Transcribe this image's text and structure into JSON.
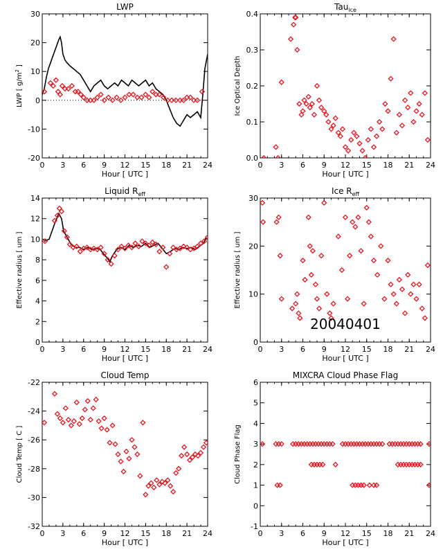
{
  "date_stamp": "20040401",
  "colors": {
    "marker": "#e8141e",
    "line": "#000000",
    "axis": "#000000",
    "background": "#ffffff"
  },
  "chart_data": [
    {
      "id": "lwp",
      "type": "line",
      "title": "LWP",
      "title_sub": "",
      "ylabel": "LWP [ g/m",
      "ylabel_sup": "2",
      "ylabel_tail": " ]",
      "xlabel": "Hour [ UTC ]",
      "xlim": [
        0,
        24
      ],
      "ylim": [
        -20,
        30
      ],
      "xticks": [
        "0",
        "3",
        "6",
        "9",
        "12",
        "15",
        "18",
        "21",
        "24"
      ],
      "yticks": [
        "-20",
        "-10",
        "0",
        "10",
        "20",
        "30"
      ],
      "zero_line": true,
      "series": [
        {
          "style": "line",
          "x": [
            0,
            0.3,
            0.6,
            0.9,
            1.2,
            1.5,
            1.8,
            2.1,
            2.4,
            2.6,
            2.8,
            3.0,
            3.3,
            3.6,
            4.0,
            4.5,
            5.0,
            5.5,
            6.0,
            6.5,
            7.0,
            7.5,
            8.0,
            8.5,
            9.0,
            9.5,
            10.0,
            10.5,
            11.0,
            11.5,
            12.0,
            12.5,
            13.0,
            13.5,
            14.0,
            14.5,
            15.0,
            15.5,
            16.0,
            16.5,
            17.0,
            17.5,
            18.0,
            18.5,
            19.0,
            19.5,
            20.0,
            20.5,
            21.0,
            21.5,
            22.0,
            22.5,
            23.0,
            23.3,
            23.6,
            24.0
          ],
          "y": [
            2,
            4,
            8,
            11,
            13,
            15,
            17,
            19,
            21,
            22,
            20,
            16,
            14,
            13,
            12,
            11,
            10,
            9,
            7,
            5,
            3,
            5,
            6,
            7,
            5,
            4,
            5,
            6,
            5,
            7,
            6,
            5,
            7,
            6,
            5,
            6,
            7,
            5,
            6,
            4,
            3,
            2,
            0,
            -3,
            -6,
            -8,
            -9,
            -7,
            -5,
            -6,
            -5,
            -4,
            -6,
            2,
            11,
            16
          ]
        },
        {
          "style": "marker",
          "x": [
            0.3,
            1.2,
            1.6,
            2.0,
            2.3,
            2.6,
            2.9,
            3.3,
            3.8,
            4.3,
            4.8,
            5.2,
            5.6,
            6.0,
            6.5,
            7.0,
            7.5,
            8.0,
            8.5,
            9.0,
            9.6,
            10.2,
            10.8,
            11.4,
            12.0,
            12.6,
            13.2,
            13.8,
            14.4,
            15.0,
            15.5,
            16.0,
            16.5,
            17.0,
            17.6,
            18.2,
            18.8,
            19.4,
            20.0,
            20.5,
            21.0,
            21.5,
            22.0,
            22.5,
            23.2
          ],
          "y": [
            3,
            6,
            5,
            7,
            3,
            2,
            5,
            4,
            4,
            5,
            3,
            3,
            2,
            1,
            0,
            0,
            0,
            1,
            2,
            0,
            1,
            0,
            1,
            0,
            1,
            2,
            2,
            1,
            1,
            2,
            1,
            3,
            2,
            2,
            1,
            0,
            0,
            0,
            0,
            0,
            1,
            1,
            0,
            0,
            3
          ]
        }
      ]
    },
    {
      "id": "tau",
      "type": "scatter",
      "title": "Tau",
      "title_sub": "ice",
      "ylabel": "Ice Optical Depth",
      "ylabel_sup": "",
      "ylabel_tail": "",
      "xlabel": "Hour [ UTC ]",
      "xlim": [
        0,
        24
      ],
      "ylim": [
        0,
        0.4
      ],
      "xticks": [
        "0",
        "3",
        "6",
        "9",
        "12",
        "15",
        "18",
        "21",
        "24"
      ],
      "yticks": [
        "0.0",
        "0.1",
        "0.2",
        "0.3",
        "0.4"
      ],
      "zero_line": false,
      "series": [
        {
          "style": "marker",
          "x": [
            0.5,
            2.2,
            2.5,
            3.0,
            4.3,
            4.7,
            4.9,
            5.0,
            5.2,
            5.5,
            5.8,
            6.0,
            6.2,
            6.5,
            6.8,
            7.0,
            7.3,
            7.6,
            8.0,
            8.3,
            8.6,
            9.0,
            9.3,
            9.6,
            10.0,
            10.3,
            10.6,
            11.0,
            11.3,
            11.6,
            12.0,
            12.4,
            12.8,
            13.2,
            13.6,
            14.0,
            14.4,
            14.8,
            15.2,
            15.6,
            16.0,
            16.4,
            16.8,
            17.2,
            17.6,
            18.0,
            18.4,
            18.8,
            19.2,
            19.6,
            20.0,
            20.4,
            20.8,
            21.2,
            21.6,
            22.0,
            22.4,
            22.8,
            23.2,
            23.6
          ],
          "y": [
            0,
            0.03,
            0,
            0.21,
            0.33,
            0.37,
            0.39,
            0.39,
            0.3,
            0.15,
            0.12,
            0.13,
            0.16,
            0.15,
            0.17,
            0.14,
            0.15,
            0.12,
            0.2,
            0.16,
            0.14,
            0.13,
            0.12,
            0.1,
            0.08,
            0.09,
            0.11,
            0.07,
            0.06,
            0.08,
            0.03,
            0.02,
            0.05,
            0.07,
            0.06,
            0.04,
            0.02,
            0.0,
            0.05,
            0.08,
            0.03,
            0.06,
            0.1,
            0.08,
            0.15,
            0.13,
            0.22,
            0.33,
            0.07,
            0.12,
            0.09,
            0.16,
            0.14,
            0.18,
            0.1,
            0.13,
            0.15,
            0.12,
            0.18,
            0.05
          ]
        }
      ]
    },
    {
      "id": "liquid_reff",
      "type": "scatter",
      "title": "Liquid R",
      "title_sub": "eff",
      "ylabel": "Effective radius [ um ]",
      "ylabel_sup": "",
      "ylabel_tail": "",
      "xlabel": "Hour [ UTC ]",
      "xlim": [
        0,
        24
      ],
      "ylim": [
        0,
        14
      ],
      "xticks": [
        "0",
        "3",
        "6",
        "9",
        "12",
        "15",
        "18",
        "21",
        "24"
      ],
      "yticks": [
        "0",
        "2",
        "4",
        "6",
        "8",
        "10",
        "12",
        "14"
      ],
      "zero_line": false,
      "series": [
        {
          "style": "line",
          "x": [
            0.3,
            1.0,
            1.8,
            2.4,
            2.8,
            3.1,
            3.6,
            4.2,
            4.8,
            5.4,
            6.0,
            6.6,
            7.2,
            7.8,
            8.4,
            9.0,
            9.4,
            9.8,
            10.2,
            10.8,
            11.4,
            12.0,
            12.6,
            13.2,
            13.8,
            14.4,
            15.0,
            15.6,
            16.2,
            16.8,
            17.4,
            18.0,
            18.6,
            19.2,
            19.8,
            20.4,
            21.0,
            21.6,
            22.2,
            22.8,
            23.4,
            23.8
          ],
          "y": [
            9.8,
            10.0,
            11.5,
            12.5,
            12.0,
            10.8,
            10.2,
            9.5,
            9.2,
            9.2,
            9.0,
            9.2,
            9.0,
            9.1,
            9.0,
            8.5,
            8.2,
            7.8,
            8.4,
            9.0,
            9.2,
            9.0,
            9.4,
            9.2,
            9.4,
            9.3,
            9.6,
            9.2,
            9.4,
            9.6,
            9.1,
            8.6,
            8.8,
            9.1,
            9.0,
            9.2,
            9.1,
            9.2,
            9.0,
            9.3,
            9.6,
            10.2
          ]
        },
        {
          "style": "marker",
          "x": [
            0.4,
            1.8,
            2.2,
            2.5,
            2.8,
            3.2,
            3.6,
            4.0,
            4.5,
            5.0,
            5.5,
            6.0,
            6.5,
            7.0,
            7.5,
            8.0,
            8.5,
            9.0,
            9.5,
            10.0,
            10.5,
            11.0,
            11.5,
            12.0,
            12.5,
            13.0,
            13.5,
            14.0,
            14.5,
            15.0,
            15.5,
            16.0,
            16.5,
            17.0,
            17.5,
            18.0,
            18.5,
            19.0,
            19.5,
            20.0,
            20.5,
            21.0,
            21.5,
            22.0,
            22.5,
            23.0,
            23.5,
            24.0
          ],
          "y": [
            9.8,
            11.8,
            12.3,
            13.0,
            12.7,
            10.8,
            10.2,
            9.5,
            9.2,
            9.3,
            8.8,
            9.1,
            9.2,
            9.0,
            9.1,
            9.0,
            9.2,
            8.6,
            8.0,
            7.6,
            8.4,
            9.0,
            9.3,
            9.1,
            9.4,
            9.2,
            9.6,
            9.3,
            9.8,
            9.6,
            9.4,
            9.7,
            9.5,
            8.8,
            9.2,
            7.3,
            8.6,
            9.2,
            9.0,
            9.1,
            9.3,
            9.2,
            9.0,
            9.1,
            9.3,
            9.6,
            9.8,
            10.2
          ]
        }
      ]
    },
    {
      "id": "ice_reff",
      "type": "scatter",
      "title": "Ice R",
      "title_sub": "eff",
      "ylabel": "Effective radius [ um ]",
      "ylabel_sup": "",
      "ylabel_tail": "",
      "xlabel": "Hour [ UTC ]",
      "xlim": [
        0,
        24
      ],
      "ylim": [
        0,
        30
      ],
      "xticks": [
        "0",
        "3",
        "6",
        "9",
        "12",
        "15",
        "18",
        "21",
        "24"
      ],
      "yticks": [
        "0",
        "10",
        "20",
        "30"
      ],
      "zero_line": false,
      "series": [
        {
          "style": "marker",
          "x": [
            0.3,
            0.4,
            2.3,
            2.6,
            2.8,
            3.0,
            4.5,
            5.0,
            5.2,
            5.4,
            5.6,
            6.0,
            6.3,
            6.8,
            7.0,
            7.2,
            7.4,
            7.8,
            8.0,
            8.3,
            8.6,
            9.0,
            9.4,
            9.8,
            10.0,
            10.3,
            11.0,
            11.5,
            12.0,
            12.3,
            12.6,
            13.0,
            13.4,
            13.8,
            14.2,
            14.6,
            15.0,
            15.3,
            15.6,
            16.0,
            16.5,
            17.0,
            17.5,
            18.0,
            18.4,
            18.8,
            19.2,
            19.6,
            20.0,
            20.4,
            20.8,
            21.2,
            21.6,
            22.0,
            22.4,
            22.8,
            23.2,
            23.6
          ],
          "y": [
            29,
            25,
            25,
            26,
            18,
            9,
            7,
            8,
            10,
            6,
            5,
            17,
            13,
            26,
            20,
            14,
            19,
            12,
            9,
            7,
            18,
            29,
            10,
            6,
            5,
            8,
            22,
            15,
            26,
            9,
            18,
            25,
            24,
            26,
            19,
            8,
            28,
            25,
            22,
            17,
            14,
            20,
            9,
            17,
            12,
            10,
            8,
            13,
            11,
            6,
            14,
            10,
            12,
            9,
            12,
            7,
            5,
            16
          ]
        }
      ]
    },
    {
      "id": "cloud_temp",
      "type": "scatter",
      "title": "Cloud Temp",
      "title_sub": "",
      "ylabel": "Cloud Temp [ C ]",
      "ylabel_sup": "",
      "ylabel_tail": "",
      "xlabel": "Hour [ UTC ]",
      "xlim": [
        0,
        24
      ],
      "ylim": [
        -32,
        -22
      ],
      "xticks": [
        "0",
        "3",
        "6",
        "9",
        "12",
        "15",
        "18",
        "21",
        "24"
      ],
      "yticks": [
        "-32",
        "-30",
        "-28",
        "-26",
        "-24",
        "-22"
      ],
      "zero_line": false,
      "series": [
        {
          "style": "marker",
          "x": [
            0.3,
            1.8,
            2.2,
            2.6,
            3.0,
            3.4,
            3.8,
            4.2,
            4.6,
            5.0,
            5.4,
            5.8,
            6.2,
            6.6,
            7.0,
            7.4,
            7.8,
            8.2,
            8.6,
            9.0,
            9.4,
            9.8,
            10.2,
            10.6,
            11.0,
            11.4,
            11.8,
            12.2,
            12.6,
            13.0,
            13.4,
            13.8,
            14.2,
            14.6,
            15.0,
            15.4,
            15.8,
            16.2,
            16.6,
            17.0,
            17.4,
            17.8,
            18.2,
            18.6,
            19.0,
            19.4,
            19.8,
            20.2,
            20.6,
            21.0,
            21.4,
            21.8,
            22.2,
            22.6,
            23.0,
            23.4,
            23.8
          ],
          "y": [
            -24.8,
            -22.8,
            -24.2,
            -24.5,
            -24.8,
            -23.8,
            -24.6,
            -25.0,
            -24.7,
            -23.4,
            -24.9,
            -24.5,
            -23.9,
            -23.3,
            -24.6,
            -23.8,
            -23.2,
            -24.7,
            -25.2,
            -24.5,
            -25.3,
            -26.2,
            -25.0,
            -26.3,
            -27.0,
            -27.5,
            -28.2,
            -26.8,
            -27.3,
            -26.0,
            -26.5,
            -27.0,
            -28.5,
            -24.8,
            -29.8,
            -29.2,
            -29.0,
            -29.3,
            -28.8,
            -29.1,
            -28.9,
            -29.0,
            -28.8,
            -29.2,
            -29.6,
            -28.3,
            -28.0,
            -27.1,
            -26.5,
            -27.0,
            -27.4,
            -27.2,
            -27.0,
            -27.1,
            -26.9,
            -26.5,
            -26.2
          ]
        }
      ]
    },
    {
      "id": "phase_flag",
      "type": "scatter",
      "title": "MIXCRA Cloud Phase Flag",
      "title_sub": "",
      "ylabel": "Cloud Phase Flag",
      "ylabel_sup": "",
      "ylabel_tail": "",
      "xlabel": "Hour [ UTC ]",
      "xlim": [
        0,
        24
      ],
      "ylim": [
        -1,
        6
      ],
      "xticks": [
        "0",
        "3",
        "6",
        "9",
        "12",
        "15",
        "18",
        "21",
        "24"
      ],
      "yticks": [
        "-1",
        "0",
        "1",
        "2",
        "3",
        "4",
        "5",
        "6"
      ],
      "zero_line": false,
      "series": [
        {
          "style": "marker",
          "x": [
            0.3,
            2.2,
            2.6,
            3.0,
            4.6,
            5.0,
            5.4,
            5.8,
            6.2,
            6.6,
            7.0,
            7.4,
            7.8,
            8.2,
            8.6,
            9.0,
            9.4,
            9.8,
            10.2,
            11.6,
            12.0,
            12.4,
            12.8,
            13.2,
            13.6,
            14.0,
            14.4,
            14.8,
            15.2,
            15.6,
            16.0,
            16.4,
            16.8,
            17.2,
            18.2,
            18.6,
            19.0,
            19.4,
            19.8,
            20.2,
            20.6,
            21.0,
            21.4,
            21.8,
            22.2,
            22.6,
            23.8,
            2.4,
            2.8,
            7.2,
            7.6,
            8.0,
            8.4,
            8.8,
            10.6,
            13.0,
            13.4,
            13.8,
            14.2,
            14.6,
            15.4,
            16.0,
            16.4,
            19.4,
            19.8,
            20.2,
            20.6,
            21.0,
            21.4,
            21.8,
            22.2,
            22.6,
            23.8
          ],
          "y": [
            3,
            3,
            3,
            3,
            3,
            3,
            3,
            3,
            3,
            3,
            3,
            3,
            3,
            3,
            3,
            3,
            3,
            3,
            3,
            3,
            3,
            3,
            3,
            3,
            3,
            3,
            3,
            3,
            3,
            3,
            3,
            3,
            3,
            3,
            3,
            3,
            3,
            3,
            3,
            3,
            3,
            3,
            3,
            3,
            3,
            3,
            3,
            1,
            1,
            2,
            2,
            2,
            2,
            2,
            2,
            1,
            1,
            1,
            1,
            1,
            1,
            1,
            1,
            2,
            2,
            2,
            2,
            2,
            2,
            2,
            2,
            2,
            1
          ]
        }
      ]
    }
  ]
}
